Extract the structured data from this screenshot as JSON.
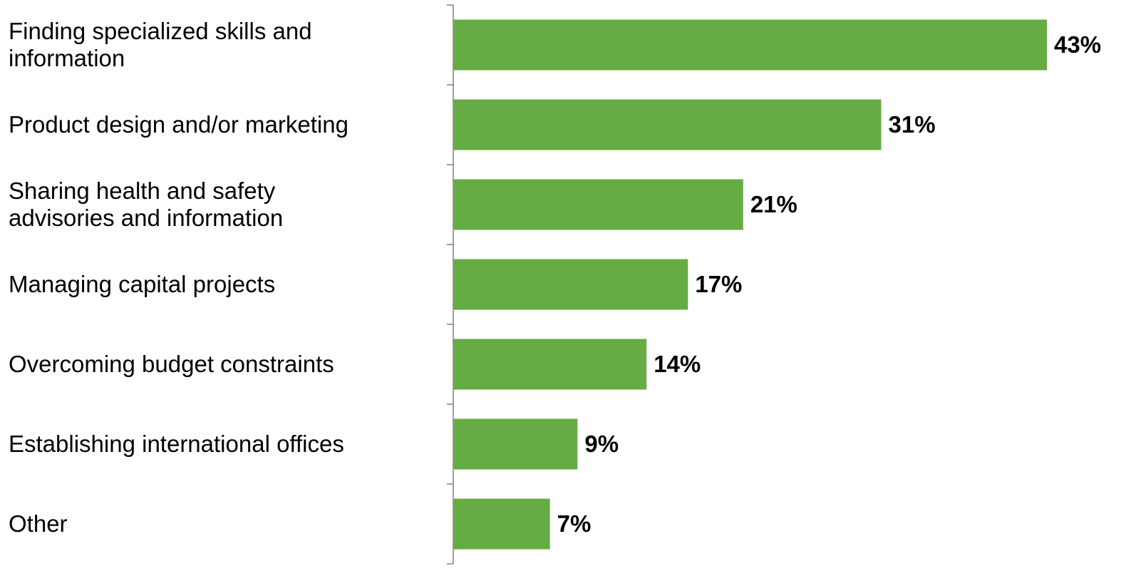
{
  "chart_data": {
    "type": "bar",
    "orientation": "horizontal",
    "categories": [
      "Finding specialized skills and\ninformation",
      "Product design and/or marketing",
      "Sharing health and safety\nadvisories and information",
      "Managing capital projects",
      "Overcoming budget constraints",
      "Establishing international offices",
      "Other"
    ],
    "values": [
      43,
      31,
      21,
      17,
      14,
      9,
      7
    ],
    "value_labels": [
      "43%",
      "31%",
      "21%",
      "17%",
      "14%",
      "9%",
      "7%"
    ],
    "title": "",
    "xlabel": "",
    "ylabel": "",
    "xlim": [
      0,
      43
    ],
    "grid": false,
    "legend": "none",
    "bar_color": "#67AB44",
    "axis_color": "#808080"
  }
}
